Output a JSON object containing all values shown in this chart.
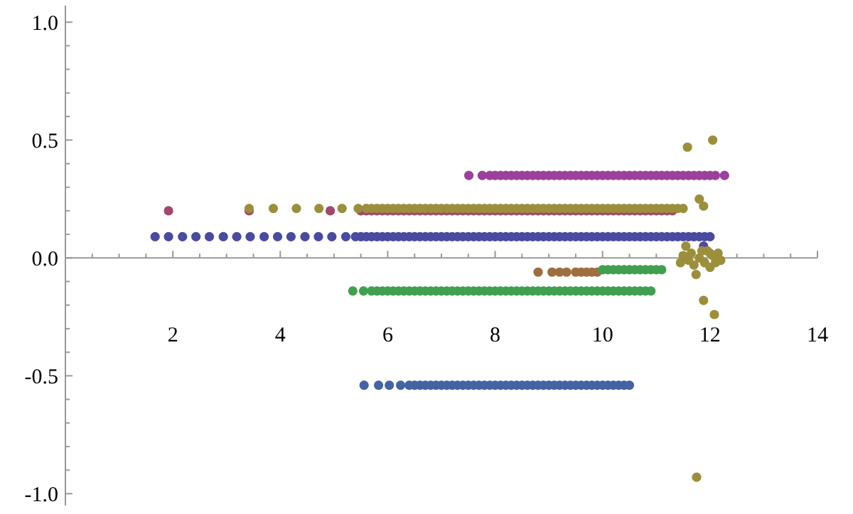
{
  "chart_data": {
    "type": "scatter",
    "marker": "circle",
    "xlim": [
      0,
      14
    ],
    "ylim": [
      -1.05,
      1.07
    ],
    "xticks": [
      {
        "value": 0.5,
        "label": null
      },
      {
        "value": 1,
        "label": null
      },
      {
        "value": 1.5,
        "label": null
      },
      2,
      {
        "value": 2.5,
        "label": null
      },
      {
        "value": 3,
        "label": null
      },
      {
        "value": 3.5,
        "label": null
      },
      4,
      {
        "value": 4.5,
        "label": null
      },
      {
        "value": 5,
        "label": null
      },
      {
        "value": 5.5,
        "label": null
      },
      6,
      {
        "value": 6.5,
        "label": null
      },
      {
        "value": 7,
        "label": null
      },
      {
        "value": 7.5,
        "label": null
      },
      8,
      {
        "value": 8.5,
        "label": null
      },
      {
        "value": 9,
        "label": null
      },
      {
        "value": 9.5,
        "label": null
      },
      10,
      {
        "value": 10.5,
        "label": null
      },
      {
        "value": 11,
        "label": null
      },
      {
        "value": 11.5,
        "label": null
      },
      12,
      {
        "value": 12.5,
        "label": null
      },
      {
        "value": 13,
        "label": null
      },
      {
        "value": 13.5,
        "label": null
      },
      14
    ],
    "yticks": [
      {
        "value": -1,
        "label": "-1.0"
      },
      {
        "value": -0.9,
        "label": null
      },
      {
        "value": -0.8,
        "label": null
      },
      {
        "value": -0.7,
        "label": null
      },
      {
        "value": -0.6,
        "label": null
      },
      -0.5,
      {
        "value": -0.4,
        "label": null
      },
      {
        "value": -0.3,
        "label": null
      },
      {
        "value": -0.2,
        "label": null
      },
      {
        "value": -0.1,
        "label": null
      },
      {
        "value": 0,
        "label": "0.0"
      },
      {
        "value": 0.1,
        "label": null
      },
      {
        "value": 0.2,
        "label": null
      },
      {
        "value": 0.3,
        "label": null
      },
      {
        "value": 0.4,
        "label": null
      },
      0.5,
      {
        "value": 0.6,
        "label": null
      },
      {
        "value": 0.7,
        "label": null
      },
      {
        "value": 0.8,
        "label": null
      },
      {
        "value": 0.9,
        "label": null
      },
      {
        "value": 1,
        "label": "1.0"
      }
    ],
    "series": [
      {
        "color": "#4a4aa0",
        "x": [
          1.67,
          1.92,
          2.18,
          2.43,
          2.68,
          2.94,
          3.19,
          3.44,
          3.7,
          3.95,
          4.2,
          4.46,
          4.71,
          4.96,
          5.22,
          5.4,
          5.5,
          5.6,
          5.7,
          5.8,
          5.9,
          6,
          6.1,
          6.2,
          6.3,
          6.4,
          6.5,
          6.6,
          6.7,
          6.8,
          6.9,
          7,
          7.1,
          7.2,
          7.3,
          7.4,
          7.5,
          7.6,
          7.7,
          7.8,
          7.9,
          8,
          8.1,
          8.2,
          8.3,
          8.4,
          8.5,
          8.6,
          8.7,
          8.8,
          8.9,
          9,
          9.1,
          9.2,
          9.3,
          9.4,
          9.5,
          9.6,
          9.7,
          9.8,
          9.9,
          10,
          10.1,
          10.2,
          10.3,
          10.4,
          10.5,
          10.6,
          10.7,
          10.8,
          10.9,
          11,
          11.1,
          11.2,
          11.3,
          11.4,
          11.5,
          11.6,
          11.7,
          11.8,
          11.9,
          12,
          11.88
        ],
        "values": [
          0.09,
          0.09,
          0.09,
          0.09,
          0.09,
          0.09,
          0.09,
          0.09,
          0.09,
          0.09,
          0.09,
          0.09,
          0.09,
          0.09,
          0.09,
          0.09,
          0.09,
          0.09,
          0.09,
          0.09,
          0.09,
          0.09,
          0.09,
          0.09,
          0.09,
          0.09,
          0.09,
          0.09,
          0.09,
          0.09,
          0.09,
          0.09,
          0.09,
          0.09,
          0.09,
          0.09,
          0.09,
          0.09,
          0.09,
          0.09,
          0.09,
          0.09,
          0.09,
          0.09,
          0.09,
          0.09,
          0.09,
          0.09,
          0.09,
          0.09,
          0.09,
          0.09,
          0.09,
          0.09,
          0.09,
          0.09,
          0.09,
          0.09,
          0.09,
          0.09,
          0.09,
          0.09,
          0.09,
          0.09,
          0.09,
          0.09,
          0.09,
          0.09,
          0.09,
          0.09,
          0.09,
          0.09,
          0.09,
          0.09,
          0.09,
          0.09,
          0.09,
          0.09,
          0.09,
          0.09,
          0.09,
          0.09,
          0.05
        ]
      },
      {
        "color": "#a3466e",
        "x": [
          1.92,
          3.42,
          4.93,
          5.5,
          5.6,
          5.7,
          5.8,
          5.9,
          6,
          6.1,
          6.2,
          6.3,
          6.4,
          6.5,
          6.6,
          6.7,
          6.8,
          6.9,
          7,
          7.1,
          7.2,
          7.3,
          7.4,
          7.5,
          7.6,
          7.7,
          7.8,
          7.9,
          8,
          8.1,
          8.2,
          8.3,
          8.4,
          8.5,
          8.6,
          8.7,
          8.8,
          8.9,
          9,
          9.1,
          9.2,
          9.3,
          9.4,
          9.5,
          9.6,
          9.7,
          9.8,
          9.9,
          10,
          10.1,
          10.2,
          10.3,
          10.4,
          10.5,
          10.6,
          10.7,
          10.8,
          10.9,
          11,
          11.1,
          11.2,
          11.3
        ],
        "values": [
          0.2,
          0.2,
          0.2,
          0.2,
          0.2,
          0.2,
          0.2,
          0.2,
          0.2,
          0.2,
          0.2,
          0.2,
          0.2,
          0.2,
          0.2,
          0.2,
          0.2,
          0.2,
          0.2,
          0.2,
          0.2,
          0.2,
          0.2,
          0.2,
          0.2,
          0.2,
          0.2,
          0.2,
          0.2,
          0.2,
          0.2,
          0.2,
          0.2,
          0.2,
          0.2,
          0.2,
          0.2,
          0.2,
          0.2,
          0.2,
          0.2,
          0.2,
          0.2,
          0.2,
          0.2,
          0.2,
          0.2,
          0.2,
          0.2,
          0.2,
          0.2,
          0.2,
          0.2,
          0.2,
          0.2,
          0.2,
          0.2,
          0.2,
          0.2,
          0.2,
          0.2,
          0.2
        ]
      },
      {
        "color": "#9c8f3c",
        "x": [
          3.42,
          3.87,
          4.3,
          4.72,
          5.15,
          5.45,
          5.6,
          5.7,
          5.8,
          5.9,
          6,
          6.1,
          6.2,
          6.3,
          6.4,
          6.5,
          6.6,
          6.7,
          6.8,
          6.9,
          7,
          7.1,
          7.2,
          7.3,
          7.4,
          7.5,
          7.6,
          7.7,
          7.8,
          7.9,
          8,
          8.1,
          8.2,
          8.3,
          8.4,
          8.5,
          8.6,
          8.7,
          8.8,
          8.9,
          9,
          9.1,
          9.2,
          9.3,
          9.4,
          9.5,
          9.6,
          9.7,
          9.8,
          9.9,
          10,
          10.1,
          10.2,
          10.3,
          10.4,
          10.5,
          10.6,
          10.7,
          10.8,
          10.9,
          11,
          11.1,
          11.2,
          11.3,
          11.4,
          11.5,
          11.58,
          12.05,
          11.8,
          11.88,
          11.55,
          11.74,
          11.88,
          12.08,
          11.75,
          11.45,
          11.5,
          11.6,
          11.65,
          11.7,
          11.8,
          11.9,
          11.95,
          12,
          12.05,
          12.1,
          12.15,
          12.2,
          11.85,
          12
        ],
        "values": [
          0.21,
          0.21,
          0.21,
          0.21,
          0.21,
          0.21,
          0.21,
          0.21,
          0.21,
          0.21,
          0.21,
          0.21,
          0.21,
          0.21,
          0.21,
          0.21,
          0.21,
          0.21,
          0.21,
          0.21,
          0.21,
          0.21,
          0.21,
          0.21,
          0.21,
          0.21,
          0.21,
          0.21,
          0.21,
          0.21,
          0.21,
          0.21,
          0.21,
          0.21,
          0.21,
          0.21,
          0.21,
          0.21,
          0.21,
          0.21,
          0.21,
          0.21,
          0.21,
          0.21,
          0.21,
          0.21,
          0.21,
          0.21,
          0.21,
          0.21,
          0.21,
          0.21,
          0.21,
          0.21,
          0.21,
          0.21,
          0.21,
          0.21,
          0.21,
          0.21,
          0.21,
          0.21,
          0.21,
          0.21,
          0.21,
          0.21,
          0.47,
          0.5,
          0.25,
          0.22,
          0.05,
          -0.07,
          -0.18,
          -0.24,
          -0.93,
          -0.02,
          0.01,
          -0.01,
          0.02,
          -0.03,
          0,
          -0.02,
          0.03,
          -0.04,
          0.01,
          -0.02,
          0.02,
          -0.01,
          0.03,
          0.02
        ]
      },
      {
        "color": "#9c409c",
        "x": [
          7.51,
          7.76,
          7.9,
          8,
          8.1,
          8.2,
          8.3,
          8.4,
          8.5,
          8.6,
          8.7,
          8.8,
          8.9,
          9,
          9.1,
          9.2,
          9.3,
          9.4,
          9.5,
          9.6,
          9.7,
          9.8,
          9.9,
          10,
          10.1,
          10.2,
          10.3,
          10.4,
          10.5,
          10.6,
          10.7,
          10.8,
          10.9,
          11,
          11.1,
          11.2,
          11.3,
          11.4,
          11.5,
          11.6,
          11.7,
          11.8,
          11.9,
          12,
          12.1,
          12.27
        ],
        "values": [
          0.35,
          0.35,
          0.35,
          0.35,
          0.35,
          0.35,
          0.35,
          0.35,
          0.35,
          0.35,
          0.35,
          0.35,
          0.35,
          0.35,
          0.35,
          0.35,
          0.35,
          0.35,
          0.35,
          0.35,
          0.35,
          0.35,
          0.35,
          0.35,
          0.35,
          0.35,
          0.35,
          0.35,
          0.35,
          0.35,
          0.35,
          0.35,
          0.35,
          0.35,
          0.35,
          0.35,
          0.35,
          0.35,
          0.35,
          0.35,
          0.35,
          0.35,
          0.35,
          0.35,
          0.35,
          0.35
        ]
      },
      {
        "color": "#a06d40",
        "x": [
          8.8,
          9.06,
          9.2,
          9.33,
          9.5,
          9.6,
          9.7,
          9.8,
          9.9
        ],
        "values": [
          -0.06,
          -0.06,
          -0.06,
          -0.06,
          -0.06,
          -0.06,
          -0.06,
          -0.06,
          -0.06
        ]
      },
      {
        "color": "#40a050",
        "x": [
          5.35,
          5.55,
          5.7,
          5.8,
          5.9,
          6,
          6.1,
          6.2,
          6.3,
          6.4,
          6.5,
          6.6,
          6.7,
          6.8,
          6.9,
          7,
          7.1,
          7.2,
          7.3,
          7.4,
          7.5,
          7.6,
          7.7,
          7.8,
          7.9,
          8,
          8.1,
          8.2,
          8.3,
          8.4,
          8.5,
          8.6,
          8.7,
          8.8,
          8.9,
          9,
          9.1,
          9.2,
          9.3,
          9.4,
          9.5,
          9.6,
          9.7,
          9.8,
          9.9,
          10,
          10.1,
          10.2,
          10.3,
          10.4,
          10.5,
          10.6,
          10.7,
          10.8,
          10.9,
          10,
          10.1,
          10.2,
          10.3,
          10.4,
          10.5,
          10.6,
          10.7,
          10.8,
          10.9,
          11,
          11.1
        ],
        "values": [
          -0.14,
          -0.14,
          -0.14,
          -0.14,
          -0.14,
          -0.14,
          -0.14,
          -0.14,
          -0.14,
          -0.14,
          -0.14,
          -0.14,
          -0.14,
          -0.14,
          -0.14,
          -0.14,
          -0.14,
          -0.14,
          -0.14,
          -0.14,
          -0.14,
          -0.14,
          -0.14,
          -0.14,
          -0.14,
          -0.14,
          -0.14,
          -0.14,
          -0.14,
          -0.14,
          -0.14,
          -0.14,
          -0.14,
          -0.14,
          -0.14,
          -0.14,
          -0.14,
          -0.14,
          -0.14,
          -0.14,
          -0.14,
          -0.14,
          -0.14,
          -0.14,
          -0.14,
          -0.14,
          -0.14,
          -0.14,
          -0.14,
          -0.14,
          -0.14,
          -0.14,
          -0.14,
          -0.14,
          -0.14,
          -0.05,
          -0.05,
          -0.05,
          -0.05,
          -0.05,
          -0.05,
          -0.05,
          -0.05,
          -0.05,
          -0.05,
          -0.05,
          -0.05
        ]
      },
      {
        "color": "#4463a3",
        "x": [
          5.56,
          5.83,
          6.03,
          6.24,
          6.4,
          6.5,
          6.6,
          6.7,
          6.8,
          6.9,
          7,
          7.1,
          7.2,
          7.3,
          7.4,
          7.5,
          7.6,
          7.7,
          7.8,
          7.9,
          8,
          8.1,
          8.2,
          8.3,
          8.4,
          8.5,
          8.6,
          8.7,
          8.8,
          8.9,
          9,
          9.1,
          9.2,
          9.3,
          9.4,
          9.5,
          9.6,
          9.7,
          9.8,
          9.9,
          10,
          10.1,
          10.2,
          10.3,
          10.4,
          10.5
        ],
        "values": [
          -0.54,
          -0.54,
          -0.54,
          -0.54,
          -0.54,
          -0.54,
          -0.54,
          -0.54,
          -0.54,
          -0.54,
          -0.54,
          -0.54,
          -0.54,
          -0.54,
          -0.54,
          -0.54,
          -0.54,
          -0.54,
          -0.54,
          -0.54,
          -0.54,
          -0.54,
          -0.54,
          -0.54,
          -0.54,
          -0.54,
          -0.54,
          -0.54,
          -0.54,
          -0.54,
          -0.54,
          -0.54,
          -0.54,
          -0.54,
          -0.54,
          -0.54,
          -0.54,
          -0.54,
          -0.54,
          -0.54,
          -0.54,
          -0.54,
          -0.54,
          -0.54,
          -0.54,
          -0.54
        ]
      }
    ]
  }
}
